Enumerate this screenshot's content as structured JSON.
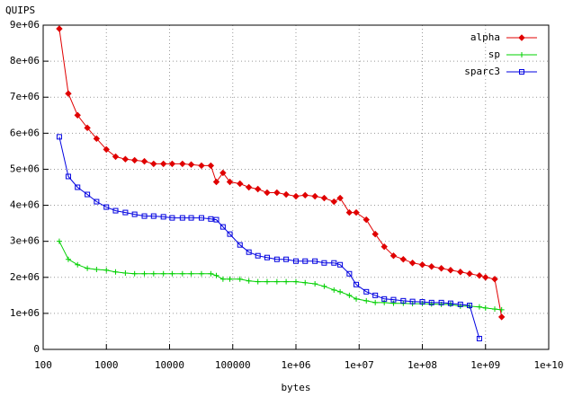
{
  "chart_data": {
    "type": "line",
    "y_label": "QUIPS",
    "x_label": "bytes",
    "log_x": true,
    "grid": true,
    "legend": "top-right",
    "xlim": [
      100,
      10000000000
    ],
    "ylim": [
      0,
      9000000
    ],
    "xticks": [
      100,
      1000,
      10000,
      100000,
      {
        "value": 1000000,
        "label": "1e+06"
      },
      {
        "value": 10000000,
        "label": "1e+07"
      },
      {
        "value": 100000000,
        "label": "1e+08"
      },
      {
        "value": 1000000000,
        "label": "1e+09"
      },
      {
        "value": 10000000000,
        "label": "1e+10"
      }
    ],
    "yticks": [
      0,
      {
        "value": 1000000,
        "label": "1e+06"
      },
      {
        "value": 2000000,
        "label": "2e+06"
      },
      {
        "value": 3000000,
        "label": "3e+06"
      },
      {
        "value": 4000000,
        "label": "4e+06"
      },
      {
        "value": 5000000,
        "label": "5e+06"
      },
      {
        "value": 6000000,
        "label": "6e+06"
      },
      {
        "value": 7000000,
        "label": "7e+06"
      },
      {
        "value": 8000000,
        "label": "8e+06"
      },
      {
        "value": 9000000,
        "label": "9e+06"
      }
    ],
    "x": [
      180,
      250,
      350,
      500,
      700,
      1000,
      1400,
      2000,
      2800,
      4000,
      5600,
      8000,
      11000,
      16000,
      22000,
      32000,
      45000,
      55000,
      70000,
      90000,
      130000,
      180000,
      250000,
      350000,
      500000,
      700000,
      1000000,
      1400000,
      2000000,
      2800000,
      4000000,
      5000000,
      7000000,
      9000000,
      13000000,
      18000000,
      25000000,
      35000000,
      50000000,
      70000000,
      100000000,
      140000000,
      200000000,
      280000000,
      400000000,
      560000000,
      800000000,
      1000000000,
      1400000000,
      1800000000
    ],
    "series": [
      {
        "name": "alpha",
        "color": "#e00000",
        "marker": "diamond",
        "values": [
          8900000,
          7100000,
          6500000,
          6150000,
          5850000,
          5550000,
          5350000,
          5280000,
          5250000,
          5220000,
          5150000,
          5150000,
          5150000,
          5150000,
          5130000,
          5100000,
          5100000,
          4650000,
          4900000,
          4650000,
          4600000,
          4500000,
          4450000,
          4350000,
          4350000,
          4300000,
          4250000,
          4280000,
          4250000,
          4200000,
          4100000,
          4200000,
          3800000,
          3800000,
          3600000,
          3200000,
          2850000,
          2600000,
          2500000,
          2400000,
          2350000,
          2300000,
          2250000,
          2200000,
          2150000,
          2100000,
          2050000,
          2000000,
          1950000,
          900000
        ]
      },
      {
        "name": "sp",
        "color": "#00d000",
        "marker": "plus",
        "values": [
          3000000,
          2500000,
          2350000,
          2250000,
          2220000,
          2200000,
          2150000,
          2120000,
          2100000,
          2100000,
          2100000,
          2100000,
          2100000,
          2100000,
          2100000,
          2100000,
          2100000,
          2050000,
          1950000,
          1950000,
          1950000,
          1900000,
          1880000,
          1880000,
          1880000,
          1880000,
          1880000,
          1850000,
          1820000,
          1750000,
          1650000,
          1600000,
          1500000,
          1400000,
          1350000,
          1300000,
          1300000,
          1280000,
          1280000,
          1270000,
          1270000,
          1260000,
          1250000,
          1250000,
          1200000,
          1200000,
          1180000,
          1150000,
          1120000,
          1100000
        ]
      },
      {
        "name": "sparc3",
        "color": "#0000e0",
        "marker": "square",
        "values": [
          5900000,
          4800000,
          4500000,
          4300000,
          4100000,
          3950000,
          3850000,
          3800000,
          3750000,
          3700000,
          3700000,
          3680000,
          3650000,
          3650000,
          3650000,
          3650000,
          3620000,
          3600000,
          3400000,
          3200000,
          2900000,
          2700000,
          2600000,
          2550000,
          2500000,
          2500000,
          2450000,
          2450000,
          2450000,
          2400000,
          2400000,
          2350000,
          2100000,
          1800000,
          1600000,
          1500000,
          1400000,
          1380000,
          1350000,
          1330000,
          1320000,
          1300000,
          1300000,
          1280000,
          1250000,
          1220000,
          300000,
          null,
          null,
          null
        ]
      }
    ]
  }
}
